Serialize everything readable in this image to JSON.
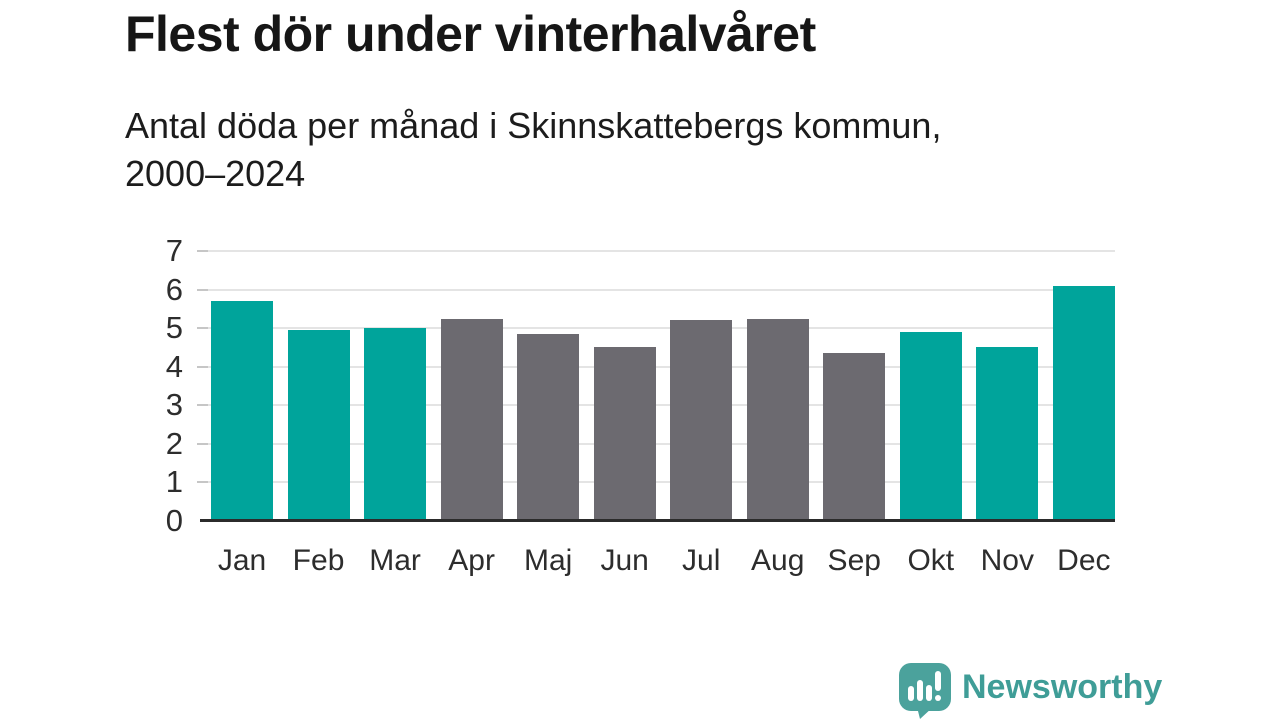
{
  "header": {
    "title": "Flest dör under vinterhalvåret",
    "subtitle_line1": "Antal döda per månad i Skinnskattebergs kommun,",
    "subtitle_line2": "2000–2024"
  },
  "chart_data": {
    "type": "bar",
    "title": "Flest dör under vinterhalvåret",
    "subtitle": "Antal döda per månad i Skinnskattebergs kommun, 2000–2024",
    "categories": [
      "Jan",
      "Feb",
      "Mar",
      "Apr",
      "Maj",
      "Jun",
      "Jul",
      "Aug",
      "Sep",
      "Okt",
      "Nov",
      "Dec"
    ],
    "values": [
      5.7,
      4.95,
      5.0,
      5.25,
      4.85,
      4.5,
      5.2,
      5.25,
      4.35,
      4.9,
      4.5,
      6.1
    ],
    "bar_color_keys": [
      "winter",
      "winter",
      "winter",
      "summer",
      "summer",
      "summer",
      "summer",
      "summer",
      "summer",
      "winter",
      "winter",
      "winter"
    ],
    "palette": {
      "winter": "#00a49b",
      "summer": "#6c6a70"
    },
    "xlabel": "",
    "ylabel": "",
    "ylim": [
      0,
      7
    ],
    "yticks": [
      0,
      1,
      2,
      3,
      4,
      5,
      6,
      7
    ],
    "grid": true,
    "legend": "none"
  },
  "footer": {
    "brand": "Newsworthy",
    "brand_color": "#3f9d97",
    "logo_icon": "speech-bubble-bar-chart-icon",
    "logo_bubble_color": "#4ba29c"
  }
}
